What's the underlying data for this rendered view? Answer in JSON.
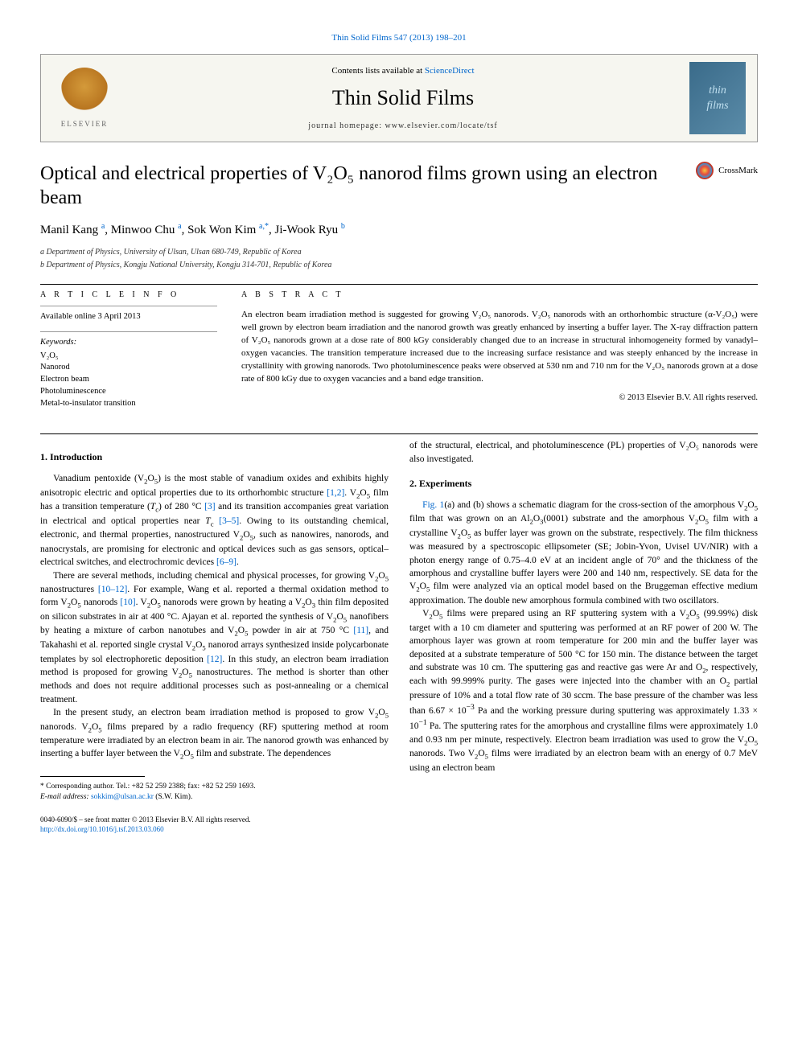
{
  "top_citation_link": "Thin Solid Films 547 (2013) 198–201",
  "header": {
    "contents_prefix": "Contents lists available at ",
    "contents_link": "ScienceDirect",
    "journal_name": "Thin Solid Films",
    "homepage": "journal homepage: www.elsevier.com/locate/tsf",
    "elsevier_label": "ELSEVIER",
    "tsf_logo_line1": "thin",
    "tsf_logo_line2": "films"
  },
  "crossmark_label": "CrossMark",
  "title": "Optical and electrical properties of V₂O₅ nanorod films grown using an electron beam",
  "authors_html": "Manil Kang <sup>a</sup>, Minwoo Chu <sup>a</sup>, Sok Won Kim <sup>a,*</sup>, Ji-Wook Ryu <sup>b</sup>",
  "affiliations": [
    "a Department of Physics, University of Ulsan, Ulsan 680-749, Republic of Korea",
    "b Department of Physics, Kongju National University, Kongju 314-701, Republic of Korea"
  ],
  "article_info": {
    "label": "A R T I C L E   I N F O",
    "available": "Available online 3 April 2013",
    "keywords_label": "Keywords:",
    "keywords": [
      "V₂O₅",
      "Nanorod",
      "Electron beam",
      "Photoluminescence",
      "Metal-to-insulator transition"
    ]
  },
  "abstract": {
    "label": "A B S T R A C T",
    "text": "An electron beam irradiation method is suggested for growing V₂O₅ nanorods. V₂O₅ nanorods with an orthorhombic structure (α-V₂O₅) were well grown by electron beam irradiation and the nanorod growth was greatly enhanced by inserting a buffer layer. The X-ray diffraction pattern of V₂O₅ nanorods grown at a dose rate of 800 kGy considerably changed due to an increase in structural inhomogeneity formed by vanadyl–oxygen vacancies. The transition temperature increased due to the increasing surface resistance and was steeply enhanced by the increase in crystallinity with growing nanorods. Two photoluminescence peaks were observed at 530 nm and 710 nm for the V₂O₅ nanorods grown at a dose rate of 800 kGy due to oxygen vacancies and a band edge transition.",
    "copyright": "© 2013 Elsevier B.V. All rights reserved."
  },
  "sections": {
    "intro_heading": "1. Introduction",
    "intro_p1": "Vanadium pentoxide (V₂O₅) is the most stable of vanadium oxides and exhibits highly anisotropic electric and optical properties due to its orthorhombic structure [1,2]. V₂O₅ film has a transition temperature (Tc) of 280 °C [3] and its transition accompanies great variation in electrical and optical properties near Tc [3–5]. Owing to its outstanding chemical, electronic, and thermal properties, nanostructured V₂O₅, such as nanowires, nanorods, and nanocrystals, are promising for electronic and optical devices such as gas sensors, optical–electrical switches, and electrochromic devices [6–9].",
    "intro_p2": "There are several methods, including chemical and physical processes, for growing V₂O₅ nanostructures [10–12]. For example, Wang et al. reported a thermal oxidation method to form V₂O₅ nanorods [10]. V₂O₅ nanorods were grown by heating a V₂O₃ thin film deposited on silicon substrates in air at 400 °C. Ajayan et al. reported the synthesis of V₂O₅ nanofibers by heating a mixture of carbon nanotubes and V₂O₅ powder in air at 750 °C [11], and Takahashi et al. reported single crystal V₂O₅ nanorod arrays synthesized inside polycarbonate templates by sol electrophoretic deposition [12]. In this study, an electron beam irradiation method is proposed for growing V₂O₅ nanostructures. The method is shorter than other methods and does not require additional processes such as post-annealing or a chemical treatment.",
    "intro_p3": "In the present study, an electron beam irradiation method is proposed to grow V₂O₅ nanorods. V₂O₅ films prepared by a radio frequency (RF) sputtering method at room temperature were irradiated by an electron beam in air. The nanorod growth was enhanced by inserting a buffer layer between the V₂O₅ film and substrate. The dependences",
    "col2_cont": "of the structural, electrical, and photoluminescence (PL) properties of V₂O₅ nanorods were also investigated.",
    "exp_heading": "2. Experiments",
    "exp_p1": "Fig. 1(a) and (b) shows a schematic diagram for the cross-section of the amorphous V₂O₅ film that was grown on an Al₂O₃(0001) substrate and the amorphous V₂O₅ film with a crystalline V₂O₅ as buffer layer was grown on the substrate, respectively. The film thickness was measured by a spectroscopic ellipsometer (SE; Jobin-Yvon, Uvisel UV/NIR) with a photon energy range of 0.75–4.0 eV at an incident angle of 70° and the thickness of the amorphous and crystalline buffer layers were 200 and 140 nm, respectively. SE data for the V₂O₅ film were analyzed via an optical model based on the Bruggeman effective medium approximation. The double new amorphous formula combined with two oscillators.",
    "exp_p2": "V₂O₅ films were prepared using an RF sputtering system with a V₂O₅ (99.99%) disk target with a 10 cm diameter and sputtering was performed at an RF power of 200 W. The amorphous layer was grown at room temperature for 200 min and the buffer layer was deposited at a substrate temperature of 500 °C for 150 min. The distance between the target and substrate was 10 cm. The sputtering gas and reactive gas were Ar and O₂, respectively, each with 99.999% purity. The gases were injected into the chamber with an O₂ partial pressure of 10% and a total flow rate of 30 sccm. The base pressure of the chamber was less than 6.67 × 10⁻³ Pa and the working pressure during sputtering was approximately 1.33 × 10⁻¹ Pa. The sputtering rates for the amorphous and crystalline films were approximately 1.0 and 0.93 nm per minute, respectively. Electron beam irradiation was used to grow the V₂O₅ nanorods. Two V₂O₅ films were irradiated by an electron beam with an energy of 0.7 MeV using an electron beam"
  },
  "corresponding": {
    "line1": "* Corresponding author. Tel.: +82 52 259 2388; fax: +82 52 259 1693.",
    "line2_prefix": "E-mail address: ",
    "email": "sokkim@ulsan.ac.kr",
    "line2_suffix": " (S.W. Kim)."
  },
  "footer": {
    "line1": "0040-6090/$ – see front matter © 2013 Elsevier B.V. All rights reserved.",
    "doi": "http://dx.doi.org/10.1016/j.tsf.2013.03.060"
  },
  "links": {
    "refs_12": "[1,2]",
    "ref_3": "[3]",
    "refs_35": "[3–5]",
    "refs_69": "[6–9]",
    "refs_1012": "[10–12]",
    "ref_10": "[10]",
    "ref_11": "[11]",
    "ref_12": "[12]",
    "fig1": "Fig. 1"
  },
  "colors": {
    "link": "#0066cc",
    "text": "#000000",
    "header_bg": "#f6f6f0",
    "border": "#999999"
  }
}
